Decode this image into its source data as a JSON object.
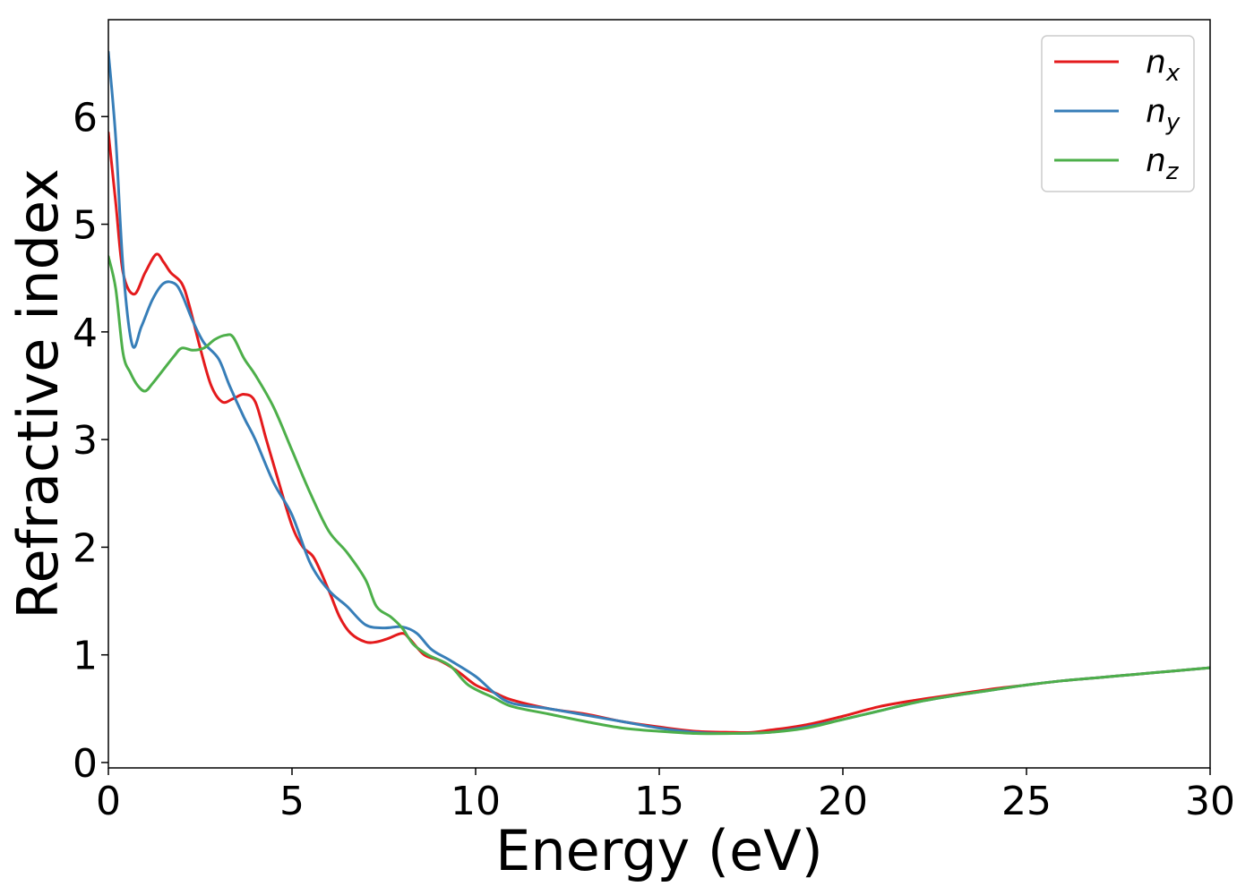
{
  "chart_data": {
    "type": "line",
    "xlabel": "Energy (eV)",
    "ylabel": "Refractive index",
    "xlim": [
      0,
      30
    ],
    "ylim": [
      -0.05,
      6.9
    ],
    "xticks": [
      0,
      5,
      10,
      15,
      20,
      25,
      30
    ],
    "yticks": [
      0,
      1,
      2,
      3,
      4,
      5,
      6
    ],
    "grid": false,
    "legend": "top-right",
    "series": [
      {
        "name": "n",
        "subscript": "x",
        "color": "#e41a1c",
        "x": [
          0,
          0.2,
          0.4,
          0.7,
          1.0,
          1.3,
          1.5,
          1.7,
          2.0,
          2.2,
          2.5,
          2.8,
          3.1,
          3.4,
          3.7,
          4.0,
          4.3,
          4.6,
          5.0,
          5.3,
          5.6,
          6.0,
          6.3,
          6.6,
          7.0,
          7.3,
          7.6,
          8.0,
          8.2,
          8.6,
          9.0,
          9.5,
          10.0,
          10.5,
          11.0,
          12.0,
          13.0,
          14.0,
          15.0,
          16.0,
          17.0,
          17.5,
          18.0,
          19.0,
          20.0,
          21.0,
          22.0,
          23.0,
          24.0,
          25.0,
          26.0,
          27.0,
          28.0,
          29.0,
          30.0
        ],
        "y": [
          5.85,
          5.2,
          4.55,
          4.35,
          4.55,
          4.72,
          4.65,
          4.55,
          4.45,
          4.25,
          3.85,
          3.5,
          3.35,
          3.38,
          3.42,
          3.35,
          3.0,
          2.65,
          2.2,
          2.0,
          1.9,
          1.6,
          1.35,
          1.2,
          1.12,
          1.12,
          1.15,
          1.2,
          1.15,
          1.0,
          0.95,
          0.85,
          0.72,
          0.65,
          0.58,
          0.5,
          0.45,
          0.38,
          0.33,
          0.29,
          0.28,
          0.28,
          0.3,
          0.35,
          0.43,
          0.52,
          0.58,
          0.63,
          0.68,
          0.72,
          0.76,
          0.79,
          0.82,
          0.85,
          0.88
        ]
      },
      {
        "name": "n",
        "subscript": "y",
        "color": "#377eb8",
        "x": [
          0,
          0.2,
          0.4,
          0.65,
          0.9,
          1.2,
          1.5,
          1.8,
          2.0,
          2.3,
          2.6,
          3.0,
          3.3,
          3.7,
          4.0,
          4.5,
          5.0,
          5.5,
          6.0,
          6.5,
          7.0,
          7.5,
          8.0,
          8.4,
          8.8,
          9.3,
          10.0,
          10.5,
          11.0,
          12.0,
          13.0,
          14.0,
          15.0,
          16.0,
          17.0,
          18.0,
          19.0,
          20.0,
          21.0,
          22.0,
          23.0,
          24.0,
          25.0,
          26.0,
          27.0,
          28.0,
          29.0,
          30.0
        ],
        "y": [
          6.6,
          5.8,
          4.6,
          3.88,
          4.05,
          4.3,
          4.45,
          4.45,
          4.35,
          4.1,
          3.9,
          3.75,
          3.5,
          3.2,
          3.0,
          2.6,
          2.3,
          1.85,
          1.6,
          1.45,
          1.28,
          1.25,
          1.26,
          1.2,
          1.05,
          0.95,
          0.8,
          0.65,
          0.55,
          0.5,
          0.44,
          0.38,
          0.32,
          0.28,
          0.27,
          0.28,
          0.33,
          0.4,
          0.48,
          0.56,
          0.62,
          0.67,
          0.72,
          0.76,
          0.79,
          0.82,
          0.85,
          0.88
        ]
      },
      {
        "name": "n",
        "subscript": "z",
        "color": "#4daf4a",
        "x": [
          0,
          0.2,
          0.4,
          0.6,
          0.8,
          1.0,
          1.2,
          1.5,
          1.8,
          2.0,
          2.3,
          2.6,
          2.9,
          3.2,
          3.4,
          3.7,
          4.0,
          4.5,
          5.0,
          5.5,
          6.0,
          6.5,
          7.0,
          7.3,
          7.7,
          8.0,
          8.3,
          8.7,
          9.3,
          9.8,
          10.5,
          11.0,
          12.0,
          13.0,
          14.0,
          15.0,
          16.0,
          17.0,
          18.0,
          19.0,
          20.0,
          21.0,
          22.0,
          23.0,
          24.0,
          25.0,
          26.0,
          27.0,
          28.0,
          29.0,
          30.0
        ],
        "y": [
          4.7,
          4.4,
          3.8,
          3.62,
          3.5,
          3.45,
          3.52,
          3.65,
          3.78,
          3.85,
          3.83,
          3.85,
          3.93,
          3.97,
          3.95,
          3.75,
          3.6,
          3.3,
          2.9,
          2.5,
          2.15,
          1.95,
          1.7,
          1.45,
          1.35,
          1.25,
          1.1,
          1.0,
          0.9,
          0.72,
          0.6,
          0.52,
          0.45,
          0.38,
          0.32,
          0.29,
          0.27,
          0.27,
          0.28,
          0.32,
          0.4,
          0.48,
          0.56,
          0.62,
          0.67,
          0.72,
          0.76,
          0.79,
          0.82,
          0.85,
          0.88
        ]
      }
    ]
  }
}
